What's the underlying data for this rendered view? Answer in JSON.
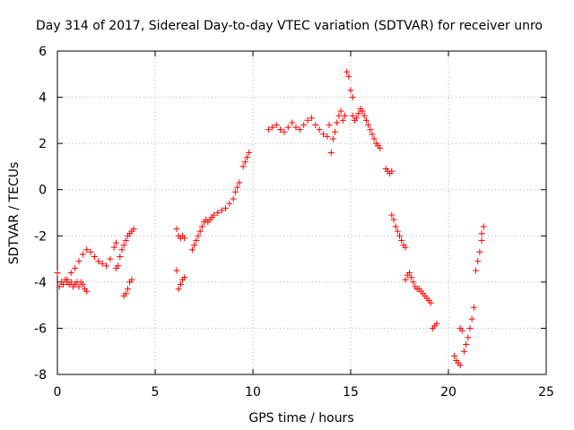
{
  "chart_data": {
    "type": "scatter",
    "title": "Day 314 of 2017, Sidereal Day-to-day VTEC variation (SDTVAR) for receiver unro",
    "xlabel": "GPS time / hours",
    "ylabel": "SDTVAR / TECUs",
    "xlim": [
      0,
      25
    ],
    "ylim": [
      -8,
      6
    ],
    "xticks": [
      "0",
      "5",
      "10",
      "15",
      "20",
      "25"
    ],
    "yticks": [
      "-8",
      "-6",
      "-4",
      "-2",
      "0",
      "2",
      "4",
      "6"
    ],
    "grid": true,
    "marker": "+",
    "marker_color": "#ff0000",
    "series": [
      {
        "name": "SDTVAR",
        "segments": [
          {
            "x": [
              0.0,
              0.1,
              0.2,
              0.3,
              0.4,
              0.5,
              0.6,
              0.7,
              0.8,
              0.9,
              1.0,
              1.1,
              1.2,
              1.3,
              1.4,
              1.5
            ],
            "y": [
              -3.6,
              -4.2,
              -4.0,
              -4.1,
              -3.9,
              -4.0,
              -4.1,
              -4.0,
              -4.2,
              -4.1,
              -4.0,
              -4.2,
              -4.0,
              -4.1,
              -4.3,
              -4.4
            ]
          },
          {
            "x": [
              0.5,
              0.7,
              0.9,
              1.1,
              1.3,
              1.5,
              1.7,
              1.9,
              2.1,
              2.3,
              2.5,
              2.7,
              2.9,
              3.0
            ],
            "y": [
              -3.9,
              -3.6,
              -3.4,
              -3.1,
              -2.8,
              -2.6,
              -2.7,
              -2.9,
              -3.1,
              -3.2,
              -3.3,
              -3.0,
              -2.5,
              -2.3
            ]
          },
          {
            "x": [
              3.0,
              3.1,
              3.2,
              3.3,
              3.4,
              3.5,
              3.6,
              3.7,
              3.8,
              3.9
            ],
            "y": [
              -3.4,
              -3.3,
              -2.9,
              -2.6,
              -2.4,
              -2.2,
              -2.0,
              -1.9,
              -1.8,
              -1.7
            ]
          },
          {
            "x": [
              3.4,
              3.5,
              3.6,
              3.7,
              3.8
            ],
            "y": [
              -4.6,
              -4.5,
              -4.3,
              -4.0,
              -3.9
            ]
          },
          {
            "x": [
              6.1,
              6.2,
              6.3,
              6.4,
              6.5
            ],
            "y": [
              -3.5,
              -4.3,
              -4.1,
              -3.9,
              -3.8
            ]
          },
          {
            "x": [
              6.1,
              6.2,
              6.3,
              6.4,
              6.5
            ],
            "y": [
              -1.7,
              -2.0,
              -2.1,
              -2.0,
              -2.1
            ]
          },
          {
            "x": [
              6.9,
              7.0,
              7.1,
              7.2,
              7.3,
              7.4,
              7.5,
              7.6,
              7.7,
              7.8,
              7.9,
              8.0,
              8.2,
              8.4,
              8.6,
              8.8,
              9.0,
              9.1,
              9.2,
              9.3
            ],
            "y": [
              -2.6,
              -2.4,
              -2.2,
              -2.0,
              -1.8,
              -1.6,
              -1.4,
              -1.3,
              -1.4,
              -1.3,
              -1.2,
              -1.1,
              -1.0,
              -0.9,
              -0.8,
              -0.6,
              -0.4,
              -0.1,
              0.1,
              0.3
            ]
          },
          {
            "x": [
              9.5,
              9.6,
              9.7,
              9.8
            ],
            "y": [
              1.0,
              1.2,
              1.4,
              1.6
            ]
          },
          {
            "x": [
              10.8,
              11.0,
              11.2,
              11.4,
              11.6,
              11.8,
              12.0,
              12.2,
              12.4,
              12.6,
              12.8,
              13.0,
              13.2,
              13.4,
              13.6,
              13.8
            ],
            "y": [
              2.6,
              2.7,
              2.8,
              2.6,
              2.5,
              2.7,
              2.9,
              2.7,
              2.6,
              2.8,
              3.0,
              3.1,
              2.8,
              2.6,
              2.4,
              2.3
            ]
          },
          {
            "x": [
              13.9,
              14.0,
              14.1,
              14.2,
              14.3,
              14.4,
              14.5,
              14.6,
              14.7
            ],
            "y": [
              2.8,
              1.6,
              2.2,
              2.5,
              2.9,
              3.2,
              3.4,
              3.0,
              3.2
            ]
          },
          {
            "x": [
              14.8,
              14.9,
              15.0,
              15.1
            ],
            "y": [
              5.1,
              4.9,
              4.3,
              4.0
            ]
          },
          {
            "x": [
              15.1,
              15.2,
              15.3,
              15.4,
              15.5,
              15.6,
              15.7,
              15.8,
              15.9,
              16.0,
              16.1,
              16.2,
              16.3,
              16.4,
              16.5
            ],
            "y": [
              3.2,
              3.0,
              3.1,
              3.3,
              3.5,
              3.4,
              3.2,
              3.0,
              2.8,
              2.6,
              2.4,
              2.2,
              2.0,
              1.9,
              1.8
            ]
          },
          {
            "x": [
              16.8,
              16.9,
              17.0,
              17.1
            ],
            "y": [
              0.9,
              0.8,
              0.7,
              0.8
            ]
          },
          {
            "x": [
              17.1,
              17.2,
              17.3,
              17.4,
              17.5,
              17.6,
              17.7,
              17.8
            ],
            "y": [
              -1.1,
              -1.3,
              -1.6,
              -1.8,
              -2.0,
              -2.2,
              -2.4,
              -2.5
            ]
          },
          {
            "x": [
              17.8,
              17.9,
              18.0,
              18.1,
              18.2,
              18.3,
              18.4,
              18.5,
              18.6,
              18.7,
              18.8,
              18.9,
              19.0,
              19.1
            ],
            "y": [
              -3.9,
              -3.7,
              -3.6,
              -3.8,
              -4.0,
              -4.2,
              -4.3,
              -4.3,
              -4.4,
              -4.5,
              -4.6,
              -4.7,
              -4.8,
              -4.9
            ]
          },
          {
            "x": [
              19.2,
              19.3,
              19.4
            ],
            "y": [
              -6.0,
              -5.9,
              -5.8
            ]
          },
          {
            "x": [
              20.3,
              20.4,
              20.5,
              20.6
            ],
            "y": [
              -7.2,
              -7.4,
              -7.5,
              -7.6
            ]
          },
          {
            "x": [
              20.6,
              20.7,
              20.8,
              20.9,
              21.0,
              21.1,
              21.2,
              21.3
            ],
            "y": [
              -6.0,
              -6.1,
              -7.0,
              -6.7,
              -6.4,
              -6.0,
              -5.6,
              -5.1
            ]
          },
          {
            "x": [
              21.4,
              21.5,
              21.6,
              21.7
            ],
            "y": [
              -3.5,
              -3.1,
              -2.7,
              -2.2
            ]
          },
          {
            "x": [
              21.7,
              21.8
            ],
            "y": [
              -1.9,
              -1.6
            ]
          }
        ]
      }
    ]
  }
}
